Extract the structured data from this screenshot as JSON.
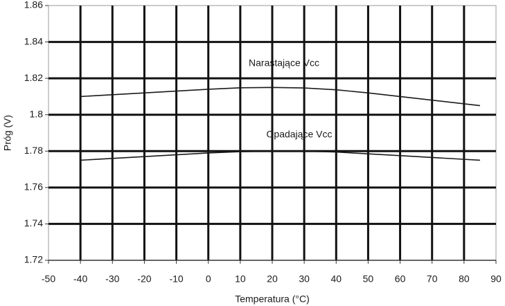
{
  "chart_data": {
    "type": "line",
    "x_label": "Temperatura (°C)",
    "y_label": "Próg (V)",
    "x": [
      -40,
      -30,
      -20,
      -10,
      0,
      10,
      20,
      30,
      40,
      50,
      60,
      70,
      80,
      85
    ],
    "series": [
      {
        "name": "Narastające Vcc",
        "color": "#1a1a1a",
        "values": [
          1.81,
          1.811,
          1.812,
          1.813,
          1.814,
          1.8148,
          1.815,
          1.8147,
          1.8137,
          1.812,
          1.81,
          1.808,
          1.806,
          1.805
        ]
      },
      {
        "name": "Opadające Vcc",
        "color": "#1a1a1a",
        "values": [
          1.775,
          1.776,
          1.777,
          1.778,
          1.779,
          1.7797,
          1.78,
          1.78,
          1.7795,
          1.7785,
          1.7775,
          1.7765,
          1.7755,
          1.775
        ]
      }
    ],
    "xlim": [
      -50,
      90
    ],
    "xticks": [
      -50,
      -40,
      -30,
      -20,
      -10,
      0,
      10,
      20,
      30,
      40,
      50,
      60,
      70,
      80,
      90
    ],
    "ylim": [
      1.72,
      1.86
    ],
    "yticks": [
      1.72,
      1.74,
      1.76,
      1.78,
      1.8,
      1.82,
      1.84,
      1.86
    ],
    "grid": true
  }
}
